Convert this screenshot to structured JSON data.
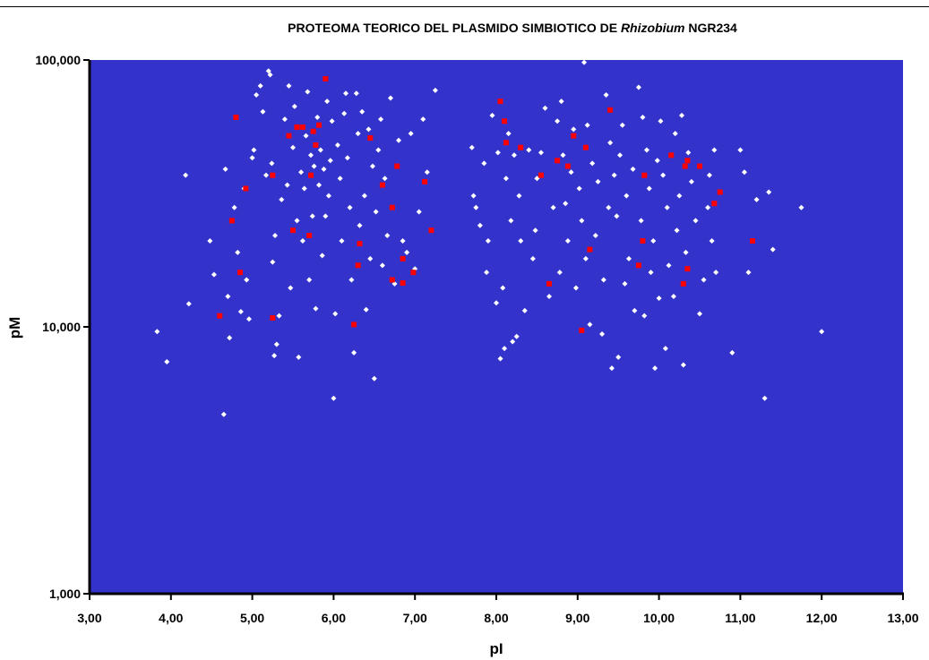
{
  "chart_data": {
    "type": "scatter",
    "title_parts": [
      "PROTEOMA TEORICO DEL PLASMIDO SIMBIOTICO DE ",
      "Rhizobium",
      " NGR234"
    ],
    "xlabel": "pI",
    "ylabel": "pM",
    "xlim": [
      3,
      13
    ],
    "ylim": [
      1000,
      100000
    ],
    "yscale": "log",
    "x_tick_labels": [
      "3,00",
      "4,00",
      "5,00",
      "6,00",
      "7,00",
      "8,00",
      "9,00",
      "10,00",
      "11,00",
      "12,00",
      "13,00"
    ],
    "y_tick_labels": [
      "1,000",
      "10,000",
      "100,000"
    ],
    "grid": false,
    "legend": "none",
    "plot_background": "#3333cc",
    "series": [
      {
        "color": "#ffffff",
        "marker": "diamond",
        "points": [
          [
            3.83,
            9600
          ],
          [
            3.95,
            7400
          ],
          [
            4.18,
            37000
          ],
          [
            4.22,
            12200
          ],
          [
            4.48,
            21000
          ],
          [
            4.53,
            15700
          ],
          [
            4.65,
            4700
          ],
          [
            4.67,
            39000
          ],
          [
            4.7,
            13000
          ],
          [
            4.72,
            9100
          ],
          [
            4.78,
            28000
          ],
          [
            4.82,
            19000
          ],
          [
            4.86,
            11400
          ],
          [
            4.9,
            33000
          ],
          [
            4.93,
            15000
          ],
          [
            4.96,
            10700
          ],
          [
            5.0,
            43000
          ],
          [
            5.02,
            46000
          ],
          [
            5.05,
            74000
          ],
          [
            5.1,
            80000
          ],
          [
            5.13,
            64000
          ],
          [
            5.17,
            37000
          ],
          [
            5.2,
            91000
          ],
          [
            5.22,
            88000
          ],
          [
            5.24,
            41000
          ],
          [
            5.25,
            17500
          ],
          [
            5.27,
            7800
          ],
          [
            5.28,
            22000
          ],
          [
            5.3,
            8600
          ],
          [
            5.33,
            11000
          ],
          [
            5.36,
            30000
          ],
          [
            5.4,
            60000
          ],
          [
            5.43,
            34000
          ],
          [
            5.45,
            80000
          ],
          [
            5.47,
            14000
          ],
          [
            5.5,
            47000
          ],
          [
            5.52,
            67000
          ],
          [
            5.55,
            25000
          ],
          [
            5.57,
            7700
          ],
          [
            5.6,
            38000
          ],
          [
            5.62,
            21000
          ],
          [
            5.64,
            33000
          ],
          [
            5.66,
            52000
          ],
          [
            5.68,
            76000
          ],
          [
            5.7,
            15000
          ],
          [
            5.72,
            44000
          ],
          [
            5.74,
            26000
          ],
          [
            5.76,
            40000
          ],
          [
            5.78,
            11700
          ],
          [
            5.8,
            61000
          ],
          [
            5.82,
            34000
          ],
          [
            5.84,
            46000
          ],
          [
            5.86,
            18500
          ],
          [
            5.88,
            39000
          ],
          [
            5.9,
            26000
          ],
          [
            5.92,
            70000
          ],
          [
            5.94,
            31000
          ],
          [
            5.96,
            42000
          ],
          [
            5.98,
            59000
          ],
          [
            6.0,
            5400
          ],
          [
            6.02,
            11200
          ],
          [
            6.05,
            48000
          ],
          [
            6.08,
            36000
          ],
          [
            6.1,
            21000
          ],
          [
            6.13,
            63000
          ],
          [
            6.15,
            75000
          ],
          [
            6.17,
            43000
          ],
          [
            6.2,
            28000
          ],
          [
            6.22,
            15000
          ],
          [
            6.25,
            8000
          ],
          [
            6.28,
            75000
          ],
          [
            6.3,
            53000
          ],
          [
            6.32,
            24000
          ],
          [
            6.35,
            64000
          ],
          [
            6.38,
            31000
          ],
          [
            6.4,
            11600
          ],
          [
            6.43,
            55000
          ],
          [
            6.45,
            18000
          ],
          [
            6.48,
            40000
          ],
          [
            6.5,
            6400
          ],
          [
            6.52,
            27000
          ],
          [
            6.55,
            46000
          ],
          [
            6.58,
            60000
          ],
          [
            6.6,
            17000
          ],
          [
            6.63,
            36000
          ],
          [
            6.66,
            22000
          ],
          [
            6.7,
            72000
          ],
          [
            6.72,
            28000
          ],
          [
            6.75,
            14500
          ],
          [
            6.8,
            50000
          ],
          [
            6.85,
            21000
          ],
          [
            6.9,
            19000
          ],
          [
            6.95,
            53000
          ],
          [
            7.0,
            16500
          ],
          [
            7.05,
            27000
          ],
          [
            7.1,
            60000
          ],
          [
            7.15,
            38000
          ],
          [
            7.25,
            77000
          ],
          [
            7.7,
            47000
          ],
          [
            7.72,
            31000
          ],
          [
            7.75,
            28000
          ],
          [
            7.8,
            24000
          ],
          [
            7.85,
            41000
          ],
          [
            7.88,
            16000
          ],
          [
            7.9,
            21000
          ],
          [
            7.95,
            62000
          ],
          [
            8.0,
            12300
          ],
          [
            8.02,
            45000
          ],
          [
            8.05,
            7600
          ],
          [
            8.08,
            14000
          ],
          [
            8.1,
            8300
          ],
          [
            8.12,
            36000
          ],
          [
            8.15,
            53000
          ],
          [
            8.18,
            25000
          ],
          [
            8.2,
            8800
          ],
          [
            8.22,
            44000
          ],
          [
            8.25,
            9200
          ],
          [
            8.28,
            31000
          ],
          [
            8.3,
            21000
          ],
          [
            8.35,
            11500
          ],
          [
            8.4,
            46000
          ],
          [
            8.45,
            18000
          ],
          [
            8.48,
            23000
          ],
          [
            8.5,
            36000
          ],
          [
            8.55,
            45000
          ],
          [
            8.6,
            66000
          ],
          [
            8.65,
            13000
          ],
          [
            8.7,
            28000
          ],
          [
            8.75,
            59000
          ],
          [
            8.78,
            16000
          ],
          [
            8.8,
            70000
          ],
          [
            8.82,
            44000
          ],
          [
            8.85,
            29000
          ],
          [
            8.88,
            21000
          ],
          [
            8.92,
            38000
          ],
          [
            8.95,
            55000
          ],
          [
            8.98,
            14000
          ],
          [
            9.02,
            33000
          ],
          [
            9.05,
            25000
          ],
          [
            9.08,
            98000
          ],
          [
            9.1,
            18000
          ],
          [
            9.12,
            57000
          ],
          [
            9.15,
            10200
          ],
          [
            9.18,
            41000
          ],
          [
            9.22,
            22000
          ],
          [
            9.25,
            35000
          ],
          [
            9.3,
            9400
          ],
          [
            9.32,
            15000
          ],
          [
            9.35,
            74000
          ],
          [
            9.38,
            28000
          ],
          [
            9.4,
            49000
          ],
          [
            9.42,
            7000
          ],
          [
            9.45,
            37000
          ],
          [
            9.48,
            26000
          ],
          [
            9.5,
            7700
          ],
          [
            9.52,
            44000
          ],
          [
            9.55,
            57000
          ],
          [
            9.58,
            14500
          ],
          [
            9.6,
            31000
          ],
          [
            9.63,
            18000
          ],
          [
            9.68,
            39000
          ],
          [
            9.7,
            11500
          ],
          [
            9.75,
            79000
          ],
          [
            9.78,
            25000
          ],
          [
            9.8,
            61000
          ],
          [
            9.82,
            11000
          ],
          [
            9.85,
            46000
          ],
          [
            9.88,
            33000
          ],
          [
            9.9,
            16000
          ],
          [
            9.93,
            21000
          ],
          [
            9.95,
            7000
          ],
          [
            9.98,
            42000
          ],
          [
            10.0,
            12800
          ],
          [
            10.02,
            59000
          ],
          [
            10.05,
            37000
          ],
          [
            10.08,
            8300
          ],
          [
            10.1,
            28000
          ],
          [
            10.12,
            17000
          ],
          [
            10.15,
            44000
          ],
          [
            10.18,
            13000
          ],
          [
            10.2,
            53000
          ],
          [
            10.22,
            23000
          ],
          [
            10.25,
            31000
          ],
          [
            10.28,
            62000
          ],
          [
            10.3,
            7200
          ],
          [
            10.33,
            19000
          ],
          [
            10.36,
            45000
          ],
          [
            10.4,
            35000
          ],
          [
            10.45,
            25000
          ],
          [
            10.5,
            11200
          ],
          [
            10.55,
            15000
          ],
          [
            10.6,
            28000
          ],
          [
            10.62,
            37000
          ],
          [
            10.65,
            21000
          ],
          [
            10.68,
            46000
          ],
          [
            10.7,
            16000
          ],
          [
            10.9,
            8000
          ],
          [
            11.0,
            46000
          ],
          [
            11.05,
            38000
          ],
          [
            11.1,
            16000
          ],
          [
            11.2,
            30000
          ],
          [
            11.3,
            5400
          ],
          [
            11.35,
            32000
          ],
          [
            11.4,
            19500
          ],
          [
            11.75,
            28000
          ],
          [
            12.0,
            9600
          ]
        ]
      },
      {
        "color": "#ff0000",
        "marker": "square",
        "points": [
          [
            4.6,
            11000
          ],
          [
            4.75,
            25000
          ],
          [
            4.8,
            61000
          ],
          [
            4.85,
            16000
          ],
          [
            4.92,
            33000
          ],
          [
            5.25,
            37000
          ],
          [
            5.25,
            10800
          ],
          [
            5.45,
            52000
          ],
          [
            5.5,
            23000
          ],
          [
            5.55,
            56000
          ],
          [
            5.62,
            56000
          ],
          [
            5.7,
            22000
          ],
          [
            5.72,
            37000
          ],
          [
            5.75,
            54000
          ],
          [
            5.78,
            48000
          ],
          [
            5.82,
            57000
          ],
          [
            5.9,
            85000
          ],
          [
            6.25,
            10200
          ],
          [
            6.3,
            17000
          ],
          [
            6.32,
            20500
          ],
          [
            6.45,
            51000
          ],
          [
            6.6,
            34000
          ],
          [
            6.72,
            15000
          ],
          [
            6.72,
            28000
          ],
          [
            6.78,
            40000
          ],
          [
            6.85,
            18000
          ],
          [
            6.85,
            14600
          ],
          [
            6.98,
            16000
          ],
          [
            7.12,
            35000
          ],
          [
            7.2,
            23000
          ],
          [
            8.05,
            70000
          ],
          [
            8.1,
            59000
          ],
          [
            8.12,
            49000
          ],
          [
            8.3,
            47000
          ],
          [
            8.55,
            37000
          ],
          [
            8.65,
            14500
          ],
          [
            8.75,
            42000
          ],
          [
            8.88,
            40000
          ],
          [
            8.95,
            52000
          ],
          [
            9.05,
            9700
          ],
          [
            9.1,
            47000
          ],
          [
            9.15,
            19500
          ],
          [
            9.4,
            65000
          ],
          [
            9.75,
            17000
          ],
          [
            9.8,
            21000
          ],
          [
            9.82,
            37000
          ],
          [
            10.15,
            44000
          ],
          [
            10.3,
            14500
          ],
          [
            10.32,
            40000
          ],
          [
            10.35,
            16500
          ],
          [
            10.35,
            42000
          ],
          [
            10.5,
            40000
          ],
          [
            10.68,
            29000
          ],
          [
            10.75,
            32000
          ],
          [
            11.15,
            21000
          ]
        ]
      }
    ]
  }
}
